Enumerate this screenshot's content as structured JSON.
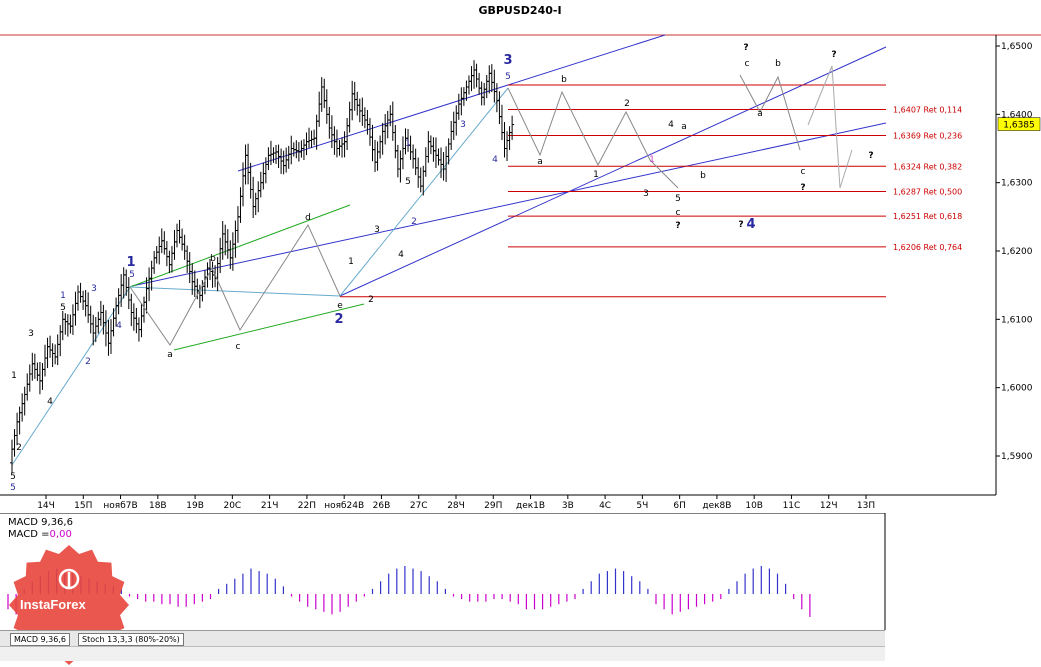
{
  "chart_data": {
    "type": "candlestick",
    "title": "GBPUSD240-I",
    "ylim": [
      1.585,
      1.652
    ],
    "current_price": "1,6385",
    "y_ticks": [
      "1,6500",
      "1,6400",
      "1,6300",
      "1,6200",
      "1,6100",
      "1,6000",
      "1,5900"
    ],
    "y_tick_values": [
      1.65,
      1.64,
      1.63,
      1.62,
      1.61,
      1.6,
      1.59
    ],
    "x_ticks": [
      "14Ч",
      "15П",
      "нояб7В",
      "18В",
      "19В",
      "20С",
      "21Ч",
      "22П",
      "нояб24В",
      "26В",
      "27С",
      "28Ч",
      "29П",
      "дек1В",
      "3В",
      "4С",
      "5Ч",
      "6П",
      "дек8В",
      "10В",
      "11С",
      "12Ч",
      "13П"
    ],
    "fib_levels": [
      {
        "value": 1.6407,
        "label": "1,6407 Ret 0,114"
      },
      {
        "value": 1.6369,
        "label": "1,6369 Ret 0,236"
      },
      {
        "value": 1.6324,
        "label": "1,6324 Ret 0,382"
      },
      {
        "value": 1.6287,
        "label": "1,6287 Ret 0,500"
      },
      {
        "value": 1.6251,
        "label": "1,6251 Ret 0,618"
      },
      {
        "value": 1.6206,
        "label": "1,6206 Ret 0,764"
      }
    ],
    "extra_levels": [
      1.6443,
      1.6133
    ],
    "close_path": [
      [
        0,
        1.589
      ],
      [
        2,
        1.595
      ],
      [
        4,
        1.599
      ],
      [
        6,
        1.6035
      ],
      [
        8,
        1.601
      ],
      [
        10,
        1.606
      ],
      [
        12,
        1.6045
      ],
      [
        14,
        1.61
      ],
      [
        16,
        1.609
      ],
      [
        18,
        1.614
      ],
      [
        20,
        1.612
      ],
      [
        22,
        1.608
      ],
      [
        24,
        1.611
      ],
      [
        26,
        1.6065
      ],
      [
        28,
        1.612
      ],
      [
        30,
        1.6165
      ],
      [
        32,
        1.611
      ],
      [
        34,
        1.6085
      ],
      [
        36,
        1.6145
      ],
      [
        38,
        1.619
      ],
      [
        40,
        1.6215
      ],
      [
        42,
        1.618
      ],
      [
        44,
        1.623
      ],
      [
        46,
        1.62
      ],
      [
        48,
        1.6155
      ],
      [
        50,
        1.6135
      ],
      [
        52,
        1.6175
      ],
      [
        54,
        1.616
      ],
      [
        56,
        1.6225
      ],
      [
        58,
        1.619
      ],
      [
        60,
        1.625
      ],
      [
        62,
        1.634
      ],
      [
        64,
        1.6265
      ],
      [
        66,
        1.63
      ],
      [
        68,
        1.634
      ],
      [
        70,
        1.6345
      ],
      [
        72,
        1.6325
      ],
      [
        74,
        1.635
      ],
      [
        76,
        1.6345
      ],
      [
        78,
        1.636
      ],
      [
        80,
        1.6365
      ],
      [
        82,
        1.644
      ],
      [
        84,
        1.638
      ],
      [
        86,
        1.635
      ],
      [
        88,
        1.636
      ],
      [
        90,
        1.643
      ],
      [
        92,
        1.6405
      ],
      [
        94,
        1.6385
      ],
      [
        96,
        1.633
      ],
      [
        98,
        1.6375
      ],
      [
        100,
        1.64
      ],
      [
        102,
        1.632
      ],
      [
        104,
        1.6365
      ],
      [
        106,
        1.6335
      ],
      [
        108,
        1.6295
      ],
      [
        110,
        1.636
      ],
      [
        112,
        1.634
      ],
      [
        114,
        1.632
      ],
      [
        116,
        1.6375
      ],
      [
        118,
        1.6415
      ],
      [
        120,
        1.644
      ],
      [
        122,
        1.6465
      ],
      [
        124,
        1.6425
      ],
      [
        126,
        1.646
      ],
      [
        128,
        1.642
      ],
      [
        130,
        1.635
      ],
      [
        132,
        1.6385
      ]
    ],
    "forecast_path": [
      [
        132,
        1.6385
      ],
      [
        144,
        1.647
      ],
      [
        156,
        1.633
      ],
      [
        162,
        1.635
      ]
    ],
    "wave_labels": [
      {
        "text": "1",
        "i": 3,
        "p": 1.599,
        "c": "#000"
      },
      {
        "text": "2",
        "i": 4,
        "p": 1.5955,
        "c": "#000"
      },
      {
        "text": "3",
        "i": 7,
        "p": 1.607,
        "c": "#000"
      },
      {
        "text": "4",
        "i": 12,
        "p": 1.5975,
        "c": "#000"
      },
      {
        "text": "5",
        "i": 16,
        "p": 1.612,
        "c": "#000"
      },
      {
        "text": "5",
        "i": 0,
        "p": 1.5855,
        "c": "#2a2aa0"
      },
      {
        "text": "5",
        "i": 0,
        "p": 1.5875,
        "c": "#000"
      },
      {
        "text": "1",
        "i": 16,
        "p": 1.6135,
        "c": "#2a2aa0"
      },
      {
        "text": "2",
        "i": 23,
        "p": 1.6045,
        "c": "#2a2aa0"
      },
      {
        "text": "3",
        "i": 25,
        "p": 1.614,
        "c": "#2a2aa0"
      },
      {
        "text": "4",
        "i": 31,
        "p": 1.609,
        "c": "#2a2aa0"
      },
      {
        "text": "a",
        "i": 43,
        "p": 1.6055,
        "c": "#000"
      },
      {
        "text": "b",
        "i": 55,
        "p": 1.617,
        "c": "#000"
      },
      {
        "text": "c",
        "i": 63,
        "p": 1.6065,
        "c": "#000"
      },
      {
        "text": "d",
        "i": 80,
        "p": 1.624,
        "c": "#000"
      },
      {
        "text": "e",
        "i": 88,
        "p": 1.6125,
        "c": "#000"
      },
      {
        "text": "1",
        "i": 92,
        "p": 1.618,
        "c": "#000"
      },
      {
        "text": "2",
        "i": 96,
        "p": 1.6125,
        "c": "#000"
      },
      {
        "text": "3",
        "i": 98,
        "p": 1.6225,
        "c": "#000"
      },
      {
        "text": "4",
        "i": 105,
        "p": 1.6195,
        "c": "#000"
      },
      {
        "text": "5",
        "i": 106,
        "p": 1.633,
        "c": "#000"
      },
      {
        "text": "1",
        "i": 106,
        "p": 1.6345,
        "c": "#2a2aa0"
      },
      {
        "text": "2",
        "i": 107,
        "p": 1.6255,
        "c": "#2a2aa0"
      },
      {
        "text": "3",
        "i": 120,
        "p": 1.639,
        "c": "#2a2aa0"
      },
      {
        "text": "4",
        "i": 128,
        "p": 1.632,
        "c": "#2a2aa0"
      },
      {
        "text": "5",
        "i": 131,
        "p": 1.6445,
        "c": "#2a2aa0"
      },
      {
        "text": "a",
        "i": 140,
        "p": 1.6325,
        "c": "#000"
      },
      {
        "text": "b",
        "i": 146,
        "p": 1.6435,
        "c": "#000"
      },
      {
        "text": "1",
        "i": 154,
        "p": 1.631,
        "c": "#000"
      },
      {
        "text": "2",
        "i": 163,
        "p": 1.6415,
        "c": "#000"
      },
      {
        "text": "1",
        "i": 168,
        "p": 1.633,
        "c": "#cc44cc"
      },
      {
        "text": "3",
        "i": 167,
        "p": 1.6285,
        "c": "#000"
      },
      {
        "text": "4",
        "i": 173,
        "p": 1.638,
        "c": "#000"
      },
      {
        "text": "a",
        "i": 176,
        "p": 1.6375,
        "c": "#000"
      },
      {
        "text": "5",
        "i": 176,
        "p": 1.6275,
        "c": "#000"
      },
      {
        "text": "c",
        "i": 176,
        "p": 1.6255,
        "c": "#000"
      },
      {
        "text": "b",
        "i": 182,
        "p": 1.631,
        "c": "#000"
      },
      {
        "text": "a",
        "i": 197,
        "p": 1.6395,
        "c": "#000"
      },
      {
        "text": "c",
        "i": 193,
        "p": 1.647,
        "c": "#000"
      },
      {
        "text": "b",
        "i": 202,
        "p": 1.6455,
        "c": "#000"
      },
      {
        "text": "c",
        "i": 208,
        "p": 1.631,
        "c": "#000"
      }
    ],
    "big_labels": [
      {
        "text": "1",
        "i": 16,
        "p": 1.6165,
        "c": "#2a2aa0"
      },
      {
        "text": "2",
        "i": 88,
        "p": 1.61,
        "c": "#2a2aa0"
      },
      {
        "text": "3",
        "i": 131,
        "p": 1.6465,
        "c": "#2a2aa0"
      },
      {
        "text": "4",
        "i": 195,
        "p": 1.6235,
        "c": "#2a2aa0"
      }
    ],
    "question_marks": [
      {
        "i": 193,
        "p": 1.649
      },
      {
        "i": 217,
        "p": 1.648
      },
      {
        "i": 176,
        "p": 1.6235
      },
      {
        "i": 192,
        "p": 1.6237
      },
      {
        "i": 208,
        "p": 1.629
      },
      {
        "i": 227,
        "p": 1.6325
      }
    ],
    "indicator": {
      "name": "MACD",
      "label1": "MACD 9,36,6",
      "label2_prefix": "MACD =",
      "label2_value": "0,00",
      "values": [
        -0.6,
        -0.8,
        0.2,
        0.5,
        0.7,
        0.9,
        1.0,
        0.9,
        0.8,
        0.7,
        0.6,
        0.5,
        0.4,
        0.3,
        0.2,
        -0.1,
        -0.2,
        -0.3,
        -0.3,
        -0.4,
        -0.4,
        -0.5,
        -0.5,
        -0.4,
        -0.3,
        -0.2,
        0.2,
        0.4,
        0.6,
        0.8,
        1.0,
        0.9,
        0.8,
        0.6,
        0.3,
        -0.1,
        -0.3,
        -0.5,
        -0.6,
        -0.7,
        -0.8,
        -0.7,
        -0.5,
        -0.3,
        -0.1,
        0.2,
        0.5,
        0.8,
        1.0,
        1.1,
        1.0,
        0.9,
        0.7,
        0.5,
        0.2,
        -0.1,
        -0.2,
        -0.3,
        -0.3,
        -0.3,
        -0.2,
        -0.2,
        -0.3,
        -0.4,
        -0.6,
        -0.6,
        -0.6,
        -0.5,
        -0.4,
        -0.3,
        -0.2,
        0.2,
        0.5,
        0.8,
        0.9,
        1.0,
        0.9,
        0.7,
        0.5,
        0.2,
        -0.4,
        -0.6,
        -0.8,
        -0.7,
        -0.6,
        -0.5,
        -0.4,
        -0.3,
        -0.2,
        0.2,
        0.5,
        0.8,
        1.0,
        1.1,
        1.0,
        0.8,
        0.4,
        -0.2,
        -0.6,
        -0.9
      ],
      "range": [
        -1.3,
        1.3
      ]
    }
  },
  "tabs": {
    "macd": "MACD 9,36,6",
    "stoch": "Stoch 13,3,3 (80%-20%)"
  },
  "logo": {
    "text": "InstaForex"
  }
}
